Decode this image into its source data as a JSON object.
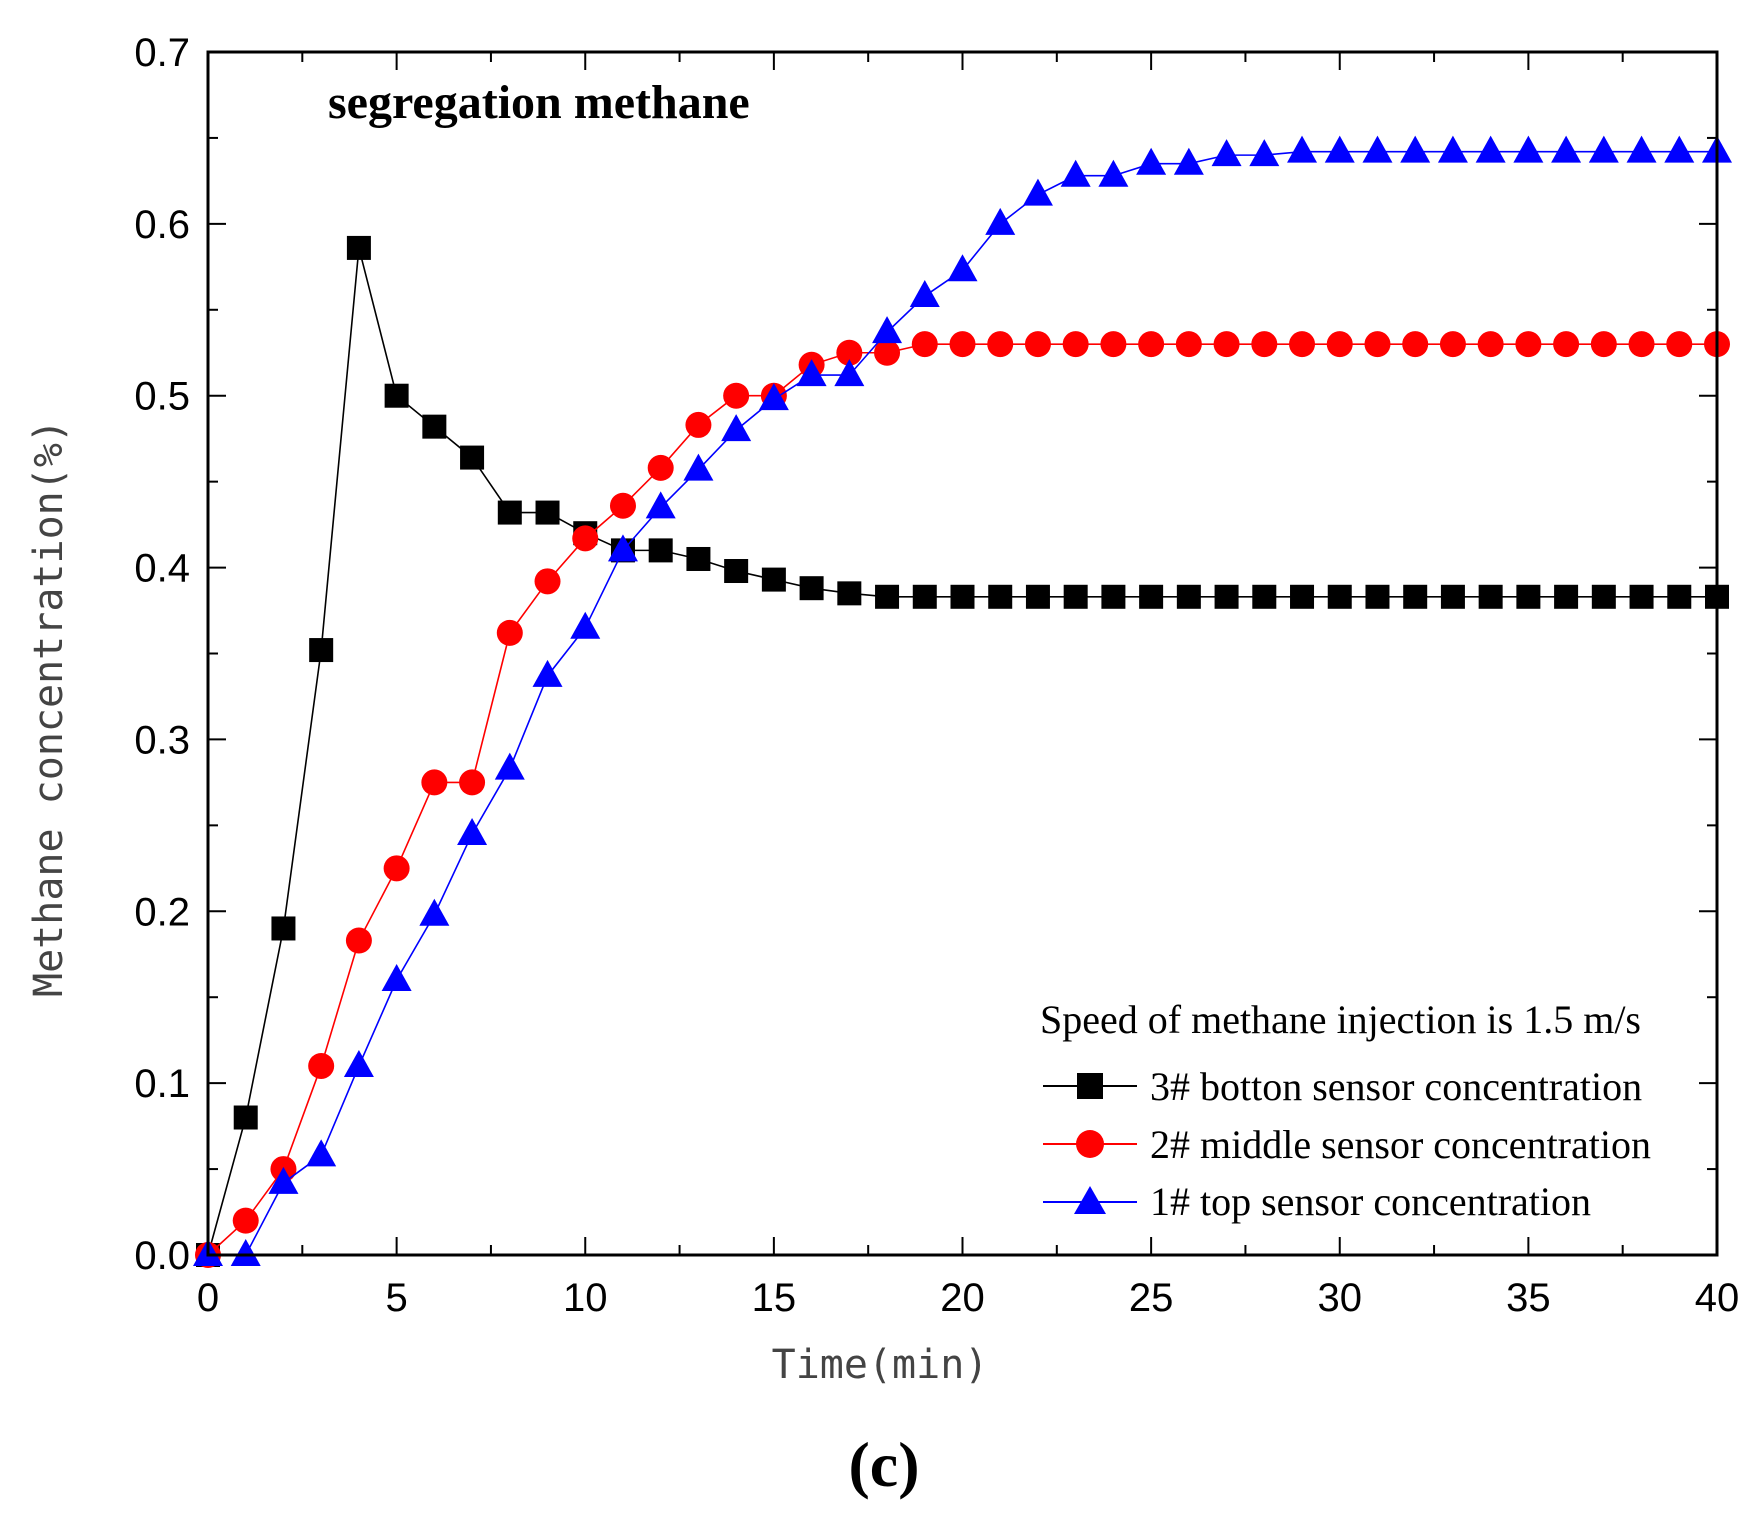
{
  "chart_data": {
    "type": "line",
    "title": "segregation methane",
    "xlabel": "Time(min)",
    "ylabel": "Methane concentration(%)",
    "xlim": [
      0,
      40
    ],
    "ylim": [
      0.0,
      0.7
    ],
    "xticks": [
      "0",
      "5",
      "10",
      "15",
      "20",
      "25",
      "30",
      "35",
      "40"
    ],
    "yticks": [
      "0.0",
      "0.1",
      "0.2",
      "0.3",
      "0.4",
      "0.5",
      "0.6",
      "0.7"
    ],
    "legend_title": "Speed of methane injection is 1.5 m/s",
    "legend_position": "bottom-right",
    "panel_label": "(c)",
    "x": [
      0,
      1,
      2,
      3,
      4,
      5,
      6,
      7,
      8,
      9,
      10,
      11,
      12,
      13,
      14,
      15,
      16,
      17,
      18,
      19,
      20,
      21,
      22,
      23,
      24,
      25,
      26,
      27,
      28,
      29,
      30,
      31,
      32,
      33,
      34,
      35,
      36,
      37,
      38,
      39,
      40
    ],
    "series": [
      {
        "name": "3# botton sensor concentration",
        "color": "#000000",
        "marker": "square",
        "values": [
          0.0,
          0.08,
          0.19,
          0.352,
          0.586,
          0.5,
          0.482,
          0.464,
          0.432,
          0.432,
          0.42,
          0.41,
          0.41,
          0.405,
          0.398,
          0.393,
          0.388,
          0.385,
          0.383,
          0.383,
          0.383,
          0.383,
          0.383,
          0.383,
          0.383,
          0.383,
          0.383,
          0.383,
          0.383,
          0.383,
          0.383,
          0.383,
          0.383,
          0.383,
          0.383,
          0.383,
          0.383,
          0.383,
          0.383,
          0.383,
          0.383
        ]
      },
      {
        "name": "2# middle sensor concentration",
        "color": "#ff0000",
        "marker": "circle",
        "values": [
          0.0,
          0.02,
          0.05,
          0.11,
          0.183,
          0.225,
          0.275,
          0.275,
          0.362,
          0.392,
          0.417,
          0.436,
          0.458,
          0.483,
          0.5,
          0.5,
          0.518,
          0.525,
          0.525,
          0.53,
          0.53,
          0.53,
          0.53,
          0.53,
          0.53,
          0.53,
          0.53,
          0.53,
          0.53,
          0.53,
          0.53,
          0.53,
          0.53,
          0.53,
          0.53,
          0.53,
          0.53,
          0.53,
          0.53,
          0.53,
          0.53
        ]
      },
      {
        "name": "1# top sensor concentration",
        "color": "#0000ff",
        "marker": "triangle",
        "values": [
          0.0,
          0.0,
          0.042,
          0.058,
          0.11,
          0.16,
          0.198,
          0.245,
          0.283,
          0.337,
          0.365,
          0.41,
          0.435,
          0.457,
          0.48,
          0.498,
          0.512,
          0.512,
          0.537,
          0.558,
          0.573,
          0.6,
          0.617,
          0.628,
          0.628,
          0.635,
          0.635,
          0.64,
          0.64,
          0.642,
          0.642,
          0.642,
          0.642,
          0.642,
          0.642,
          0.642,
          0.642,
          0.642,
          0.642,
          0.642,
          0.642
        ]
      }
    ]
  }
}
